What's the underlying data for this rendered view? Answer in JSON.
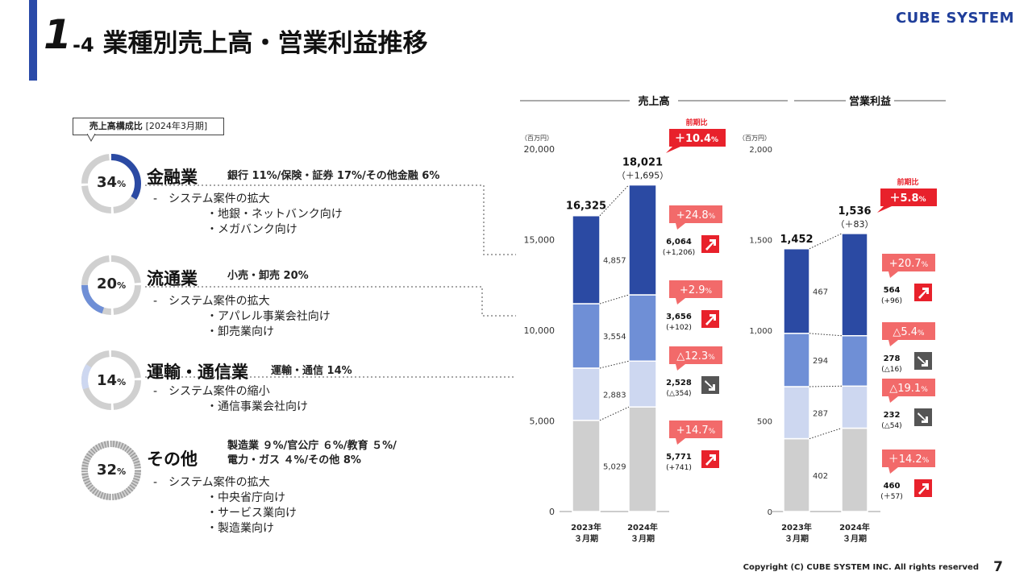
{
  "header": {
    "section_number": "1",
    "section_suffix": "-4",
    "title": "業種別売上高・営業利益推移",
    "logo_text": "CUBE SYSTEM"
  },
  "composition_label": {
    "main": "売上高構成比",
    "sub": "[2024年3月期]"
  },
  "segments": [
    {
      "name": "金融業",
      "percent": "34",
      "pct_unit": "%",
      "details": [
        "銀行 11%/保険・証券 17%/その他金融 6%"
      ],
      "lines": [
        "-　システム案件の拡大",
        "・地銀・ネットバンク向け",
        "・メガバンク向け"
      ]
    },
    {
      "name": "流通業",
      "percent": "20",
      "pct_unit": "%",
      "details": [
        "小売・卸売 20%"
      ],
      "lines": [
        "-　システム案件の拡大",
        "・アパレル事業会社向け",
        "・卸売業向け"
      ]
    },
    {
      "name": "運輸・通信業",
      "percent": "14",
      "pct_unit": "%",
      "details": [
        "運輸・通信 14%"
      ],
      "lines": [
        "-　システム案件の縮小",
        "・通信事業会社向け"
      ]
    },
    {
      "name": "その他",
      "percent": "32",
      "pct_unit": "%",
      "details": [
        "製造業 ９%/官公庁 ６%/教育 ５%/",
        "電力・ガス ４%/その他 8%"
      ],
      "lines": [
        "-　システム案件の拡大",
        "・中央省庁向け",
        "・サービス業向け",
        "・製造業向け"
      ]
    }
  ],
  "colors": {
    "finance": "#2b4aa3",
    "retail": "#6f8fd6",
    "transport": "#cdd7f0",
    "other": "#cfcfcf",
    "red": "#e8212b",
    "pink": "#f26a6a",
    "gray_arrow": "#555555"
  },
  "chart_data": [
    {
      "type": "bar",
      "title": "売上高",
      "unit_label": "（百万円）",
      "categories": [
        "2023年\n３月期",
        "2024年\n３月期"
      ],
      "y_ticks": [
        "0",
        "5,000",
        "10,000",
        "15,000",
        "20,000"
      ],
      "ylim": [
        0,
        20000
      ],
      "series": [
        {
          "key": "other",
          "values": [
            5029,
            5771
          ]
        },
        {
          "key": "transport",
          "values": [
            2883,
            2528
          ]
        },
        {
          "key": "retail",
          "values": [
            3554,
            3656
          ]
        },
        {
          "key": "finance",
          "values": [
            4857,
            6064
          ]
        }
      ],
      "bar_labels_2023": [
        "5,029",
        "2,883",
        "3,554",
        "4,857"
      ],
      "totals": [
        "16,325",
        "18,021"
      ],
      "total_change": "（＋1,695）",
      "headline": {
        "label": "前期比",
        "value": "＋10.4",
        "unit": "%"
      },
      "segment_changes": [
        {
          "pct": "+14.7",
          "unit": "%",
          "value": "5,771",
          "diff": "(+741)",
          "dir": "up"
        },
        {
          "pct": "△12.3",
          "unit": "%",
          "value": "2,528",
          "diff": "(△354)",
          "dir": "down"
        },
        {
          "pct": "+2.9",
          "unit": "%",
          "value": "3,656",
          "diff": "(+102)",
          "dir": "up"
        },
        {
          "pct": "+24.8",
          "unit": "%",
          "value": "6,064",
          "diff": "(+1,206)",
          "dir": "up"
        }
      ]
    },
    {
      "type": "bar",
      "title": "営業利益",
      "unit_label": "（百万円）",
      "categories": [
        "2023年\n３月期",
        "2024年\n３月期"
      ],
      "y_ticks": [
        "0",
        "500",
        "1,000",
        "1,500",
        "2,000"
      ],
      "ylim": [
        0,
        2000
      ],
      "series": [
        {
          "key": "other",
          "values": [
            402,
            460
          ]
        },
        {
          "key": "transport",
          "values": [
            287,
            232
          ]
        },
        {
          "key": "retail",
          "values": [
            294,
            278
          ]
        },
        {
          "key": "finance",
          "values": [
            467,
            564
          ]
        }
      ],
      "bar_labels_2023": [
        "402",
        "287",
        "294",
        "467"
      ],
      "totals": [
        "1,452",
        "1,536"
      ],
      "total_change": "（＋83）",
      "headline": {
        "label": "前期比",
        "value": "＋5.8",
        "unit": "%"
      },
      "segment_changes": [
        {
          "pct": "＋14.2",
          "unit": "%",
          "value": "460",
          "diff": "(＋57)",
          "dir": "up"
        },
        {
          "pct": "△19.1",
          "unit": "%",
          "value": "232",
          "diff": "(△54)",
          "dir": "down"
        },
        {
          "pct": "△5.4",
          "unit": "%",
          "value": "278",
          "diff": "(△16)",
          "dir": "down"
        },
        {
          "pct": "+20.7",
          "unit": "%",
          "value": "564",
          "diff": "(+96)",
          "dir": "up"
        }
      ]
    }
  ],
  "footer": {
    "copyright": "Copyright (C) CUBE SYSTEM INC. All rights reserved",
    "page": "7"
  }
}
